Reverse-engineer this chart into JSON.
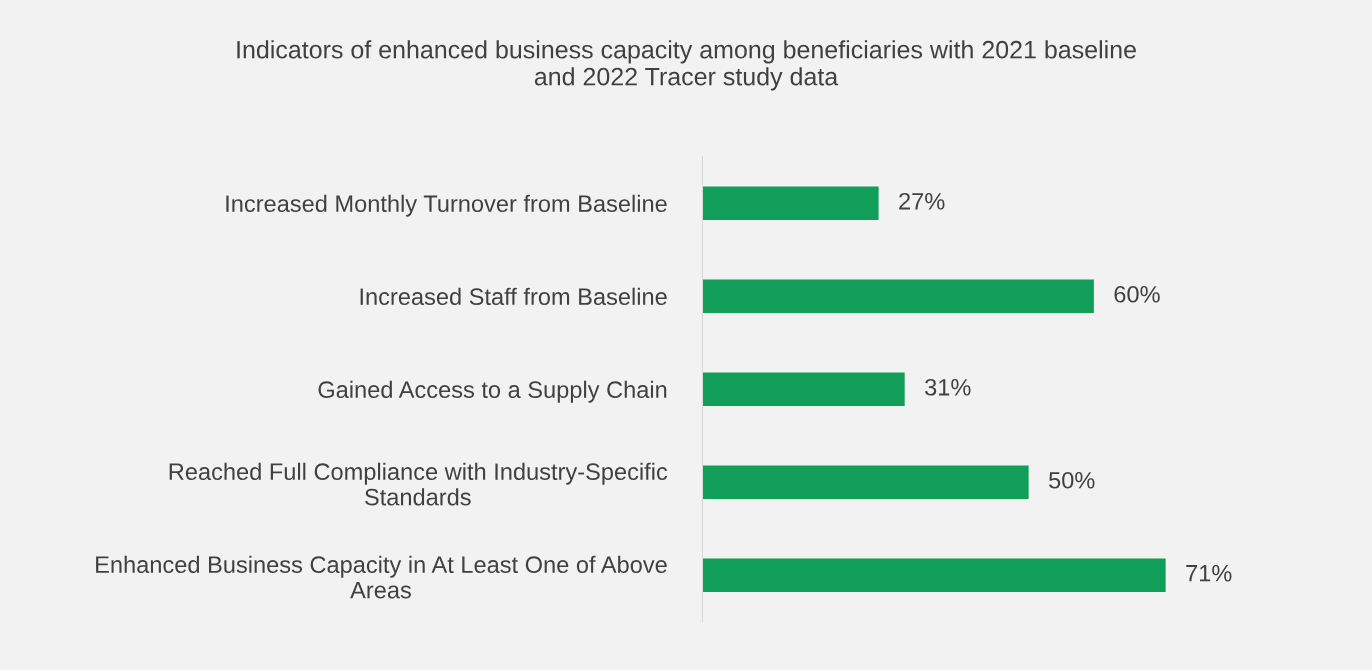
{
  "chart_data": {
    "type": "bar",
    "orientation": "horizontal",
    "title": "Indicators of enhanced business capacity among beneficiaries with 2021 baseline and 2022 Tracer study data",
    "categories": [
      "Increased Monthly Turnover from Baseline",
      "Increased Staff from Baseline",
      "Gained Access to a Supply Chain",
      "Reached Full Compliance with Industry-Specific Standards",
      "Enhanced Business Capacity in At Least One of Above Areas"
    ],
    "values": [
      27,
      60,
      31,
      50,
      71
    ],
    "value_labels": [
      "27%",
      "60%",
      "31%",
      "50%",
      "71%"
    ],
    "color": "#109e58",
    "grid": false,
    "legend": false,
    "tick_labels": "y"
  }
}
